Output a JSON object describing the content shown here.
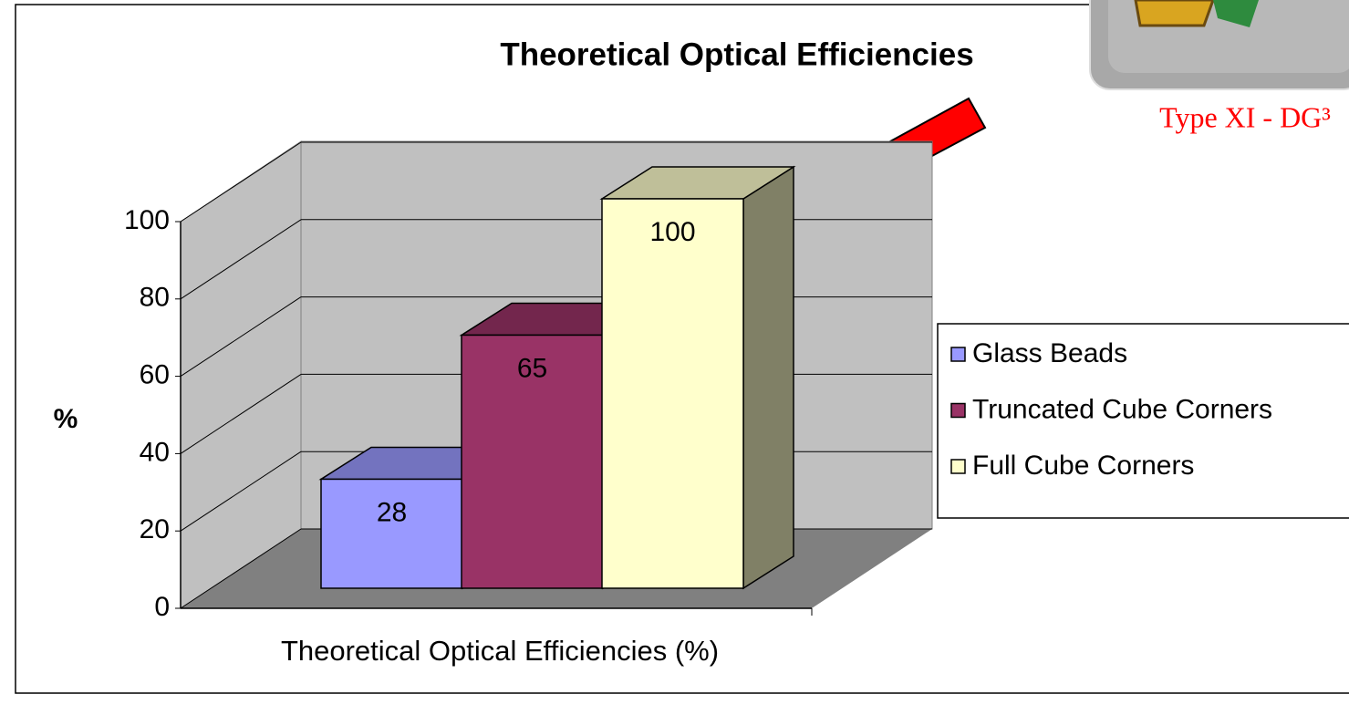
{
  "chart_data": {
    "type": "bar3d",
    "title": "Theoretical Optical Efficiencies",
    "y_label": "%",
    "x_label": "Theoretical Optical Efficiencies (%)",
    "annotation": "Type XI - DG³",
    "series": [
      {
        "name": "Glass Beads",
        "color": "#9999ff",
        "values": [
          28
        ]
      },
      {
        "name": "Truncated Cube Corners",
        "color": "#993366",
        "values": [
          65
        ]
      },
      {
        "name": "Full Cube Corners",
        "color": "#ffffcc",
        "values": [
          100
        ]
      }
    ],
    "ylim": [
      0,
      100
    ],
    "yticks": [
      0,
      20,
      40,
      60,
      80,
      100
    ],
    "grid": true,
    "legend": "right"
  }
}
